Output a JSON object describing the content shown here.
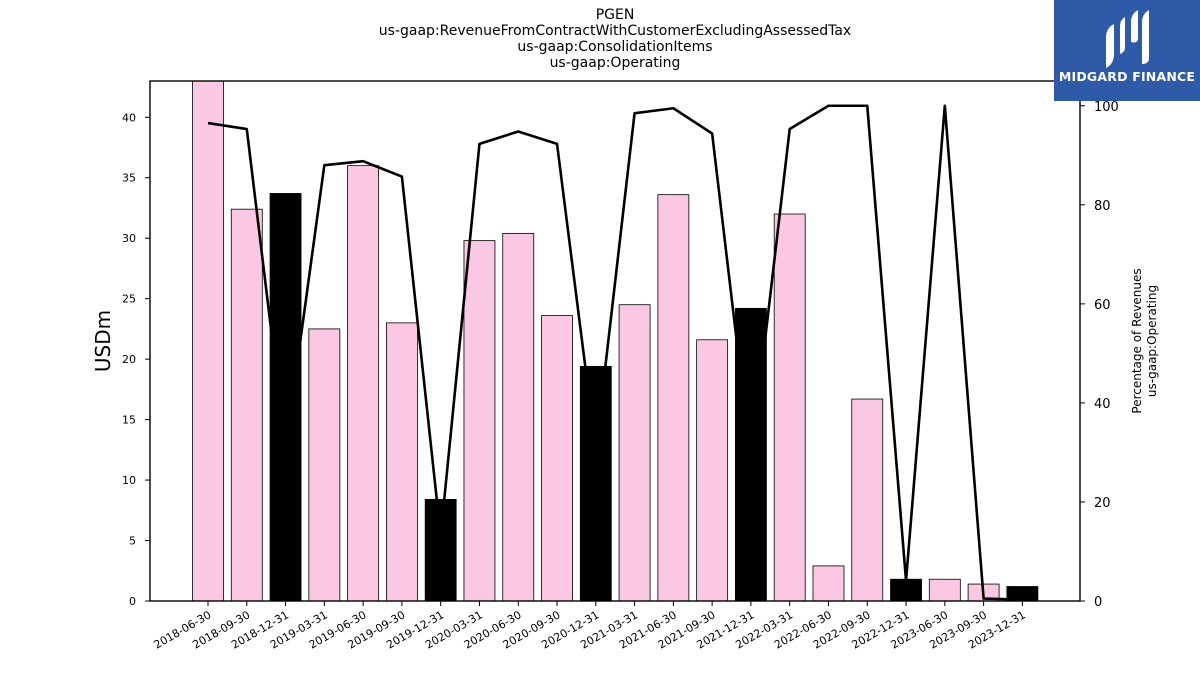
{
  "chart_data": {
    "type": "bar",
    "title": [
      "PGEN",
      "us-gaap:RevenueFromContractWithCustomerExcludingAssessedTax",
      "us-gaap:ConsolidationItems",
      "us-gaap:Operating"
    ],
    "ylabel": "USDm",
    "y2label": [
      "Percentage of Revenues",
      "us-gaap:Operating"
    ],
    "ylim": [
      0,
      43
    ],
    "y2lim": [
      0,
      105
    ],
    "yticks": [
      0,
      5,
      10,
      15,
      20,
      25,
      30,
      35,
      40
    ],
    "y2ticks": [
      0,
      20,
      40,
      60,
      80,
      100
    ],
    "categories": [
      "2018-06-30",
      "2018-09-30",
      "2018-12-31",
      "2019-03-31",
      "2019-06-30",
      "2019-09-30",
      "2019-12-31",
      "2020-03-31",
      "2020-06-30",
      "2020-09-30",
      "2020-12-31",
      "2021-03-31",
      "2021-06-30",
      "2021-09-30",
      "2021-12-31",
      "2022-03-31",
      "2022-06-30",
      "2022-09-30",
      "2022-12-31",
      "2023-06-30",
      "2023-09-30",
      "2023-12-31"
    ],
    "series": [
      {
        "kind": "bar",
        "values": [
          43.0,
          32.4,
          33.7,
          22.5,
          36.0,
          23.0,
          8.4,
          29.8,
          30.4,
          23.6,
          19.4,
          24.5,
          33.6,
          21.6,
          24.2,
          32.0,
          2.9,
          16.7,
          1.8,
          1.8,
          1.4,
          1.2
        ],
        "colors": [
          "#fbc8e3",
          "#fbc8e3",
          "#000000",
          "#fbc8e3",
          "#fbc8e3",
          "#fbc8e3",
          "#000000",
          "#fbc8e3",
          "#fbc8e3",
          "#fbc8e3",
          "#000000",
          "#fbc8e3",
          "#fbc8e3",
          "#fbc8e3",
          "#000000",
          "#fbc8e3",
          "#fbc8e3",
          "#fbc8e3",
          "#000000",
          "#fbc8e3",
          "#fbc8e3",
          "#000000"
        ]
      },
      {
        "kind": "line",
        "axis": "right",
        "color": "#000000",
        "values": [
          96.5,
          95.3,
          30.7,
          88.0,
          88.8,
          85.7,
          13.2,
          92.3,
          94.8,
          92.3,
          30.6,
          98.5,
          99.5,
          94.4,
          28.3,
          95.3,
          100.0,
          100.0,
          4.1,
          100.0,
          0.5,
          0.3
        ]
      }
    ],
    "grid": false,
    "legend": "none"
  },
  "brand": {
    "name": "MIDGARD FINANCE",
    "icon": "midgard-logo-icon",
    "color": "#2f5aa8"
  }
}
